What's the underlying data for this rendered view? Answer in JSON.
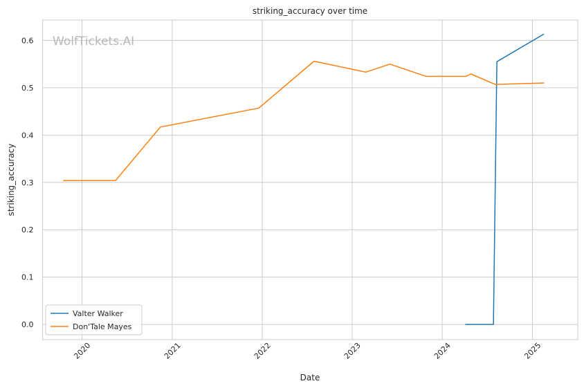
{
  "chart_data": {
    "type": "line",
    "title": "striking_accuracy over time",
    "xlabel": "Date",
    "ylabel": "striking_accuracy",
    "watermark": "WolfTickets.AI",
    "x_axis": "date",
    "xlim": [
      "2019-07-25",
      "2025-07-04"
    ],
    "ylim": [
      -0.032,
      0.643
    ],
    "x_ticks": [
      "2020-01-01",
      "2021-01-01",
      "2022-01-01",
      "2023-01-01",
      "2024-01-01",
      "2025-01-01"
    ],
    "x_tick_labels": [
      "2020",
      "2021",
      "2022",
      "2023",
      "2024",
      "2025"
    ],
    "y_ticks": [
      0.0,
      0.1,
      0.2,
      0.3,
      0.4,
      0.5,
      0.6
    ],
    "y_tick_labels": [
      "0.0",
      "0.1",
      "0.2",
      "0.3",
      "0.4",
      "0.5",
      "0.6"
    ],
    "grid": true,
    "legend_position": "lower-left",
    "series": [
      {
        "name": "Valter Walker",
        "color": "#1f77b4",
        "points": [
          {
            "x": "2024-04-06",
            "y": 0.0
          },
          {
            "x": "2024-07-27",
            "y": 0.0
          },
          {
            "x": "2024-08-10",
            "y": 0.555
          },
          {
            "x": "2025-02-15",
            "y": 0.613
          }
        ]
      },
      {
        "name": "Don'Tale Mayes",
        "color": "#ff7f0e",
        "points": [
          {
            "x": "2019-10-19",
            "y": 0.304
          },
          {
            "x": "2020-05-16",
            "y": 0.304
          },
          {
            "x": "2020-11-14",
            "y": 0.417
          },
          {
            "x": "2021-12-18",
            "y": 0.457
          },
          {
            "x": "2022-07-30",
            "y": 0.556
          },
          {
            "x": "2023-02-25",
            "y": 0.533
          },
          {
            "x": "2023-06-03",
            "y": 0.55
          },
          {
            "x": "2023-10-28",
            "y": 0.524
          },
          {
            "x": "2024-04-06",
            "y": 0.524
          },
          {
            "x": "2024-04-27",
            "y": 0.529
          },
          {
            "x": "2024-08-03",
            "y": 0.507
          },
          {
            "x": "2025-02-15",
            "y": 0.51
          }
        ]
      }
    ]
  }
}
